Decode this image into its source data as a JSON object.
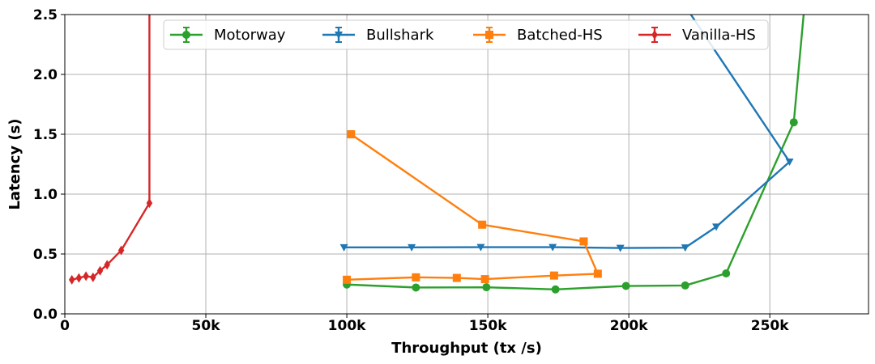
{
  "chart_data": {
    "type": "line",
    "title": "",
    "xlabel": "Throughput (tx /s)",
    "ylabel": "Latency (s)",
    "xlim": [
      0,
      285000
    ],
    "ylim": [
      0,
      2.5
    ],
    "x_ticks": [
      0,
      50000,
      100000,
      150000,
      200000,
      250000
    ],
    "x_tick_labels": [
      "0",
      "50k",
      "100k",
      "150k",
      "200k",
      "250k"
    ],
    "y_ticks": [
      0,
      0.5,
      1.0,
      1.5,
      2.0,
      2.5
    ],
    "y_tick_labels": [
      "0.0",
      "0.5",
      "1.0",
      "1.5",
      "2.0",
      "2.5"
    ],
    "grid": true,
    "legend_position": "top",
    "series": [
      {
        "name": "Motorway",
        "color": "#2ca02c",
        "marker": "circle",
        "points": [
          [
            100000,
            0.245
          ],
          [
            124500,
            0.22
          ],
          [
            149500,
            0.222
          ],
          [
            174000,
            0.204
          ],
          [
            199000,
            0.233
          ],
          [
            220000,
            0.237
          ],
          [
            234500,
            0.338
          ],
          [
            258500,
            1.6
          ],
          [
            262000,
            2.5
          ]
        ]
      },
      {
        "name": "Bullshark",
        "color": "#1f77b4",
        "marker": "triangle-down",
        "points": [
          [
            99000,
            0.555
          ],
          [
            123000,
            0.555
          ],
          [
            147500,
            0.557
          ],
          [
            173000,
            0.557
          ],
          [
            197000,
            0.55
          ],
          [
            220000,
            0.553
          ],
          [
            231000,
            0.727
          ],
          [
            257000,
            1.27
          ],
          [
            222000,
            2.5
          ]
        ]
      },
      {
        "name": "Batched-HS",
        "color": "#ff7f0e",
        "marker": "square",
        "points": [
          [
            101500,
            1.5
          ],
          [
            148000,
            0.745
          ],
          [
            184000,
            0.605
          ],
          [
            189000,
            0.335
          ],
          [
            173500,
            0.32
          ],
          [
            149000,
            0.29
          ],
          [
            139000,
            0.3
          ],
          [
            124500,
            0.305
          ],
          [
            100000,
            0.285
          ]
        ]
      },
      {
        "name": "Vanilla-HS",
        "color": "#d62728",
        "marker": "diamond",
        "points": [
          [
            2500,
            0.285
          ],
          [
            5000,
            0.3
          ],
          [
            7500,
            0.315
          ],
          [
            10000,
            0.305
          ],
          [
            12500,
            0.36
          ],
          [
            15000,
            0.41
          ],
          [
            20000,
            0.53
          ],
          [
            30000,
            0.925
          ],
          [
            30000,
            2.5
          ]
        ]
      }
    ]
  }
}
